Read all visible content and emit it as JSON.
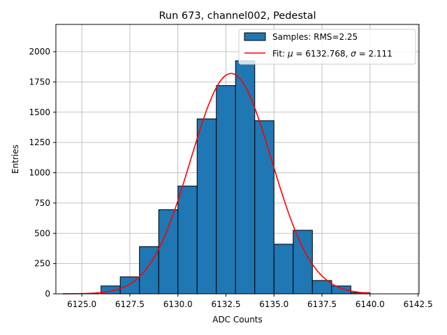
{
  "chart_data": {
    "type": "bar",
    "title": "Run 673, channel002, Pedestal",
    "xlabel": "ADC Counts",
    "ylabel": "Entries",
    "xlim": [
      6123.65,
      6142.55
    ],
    "ylim": [
      0,
      2225
    ],
    "grid": true,
    "legend_position": "top-right",
    "x_ticks": [
      6125.0,
      6127.5,
      6130.0,
      6132.5,
      6135.0,
      6137.5,
      6140.0,
      6142.5
    ],
    "x_tick_labels": [
      "6125.0",
      "6127.5",
      "6130.0",
      "6132.5",
      "6135.0",
      "6137.5",
      "6140.0",
      "6142.5"
    ],
    "y_ticks": [
      0,
      250,
      500,
      750,
      1000,
      1250,
      1500,
      1750,
      2000
    ],
    "y_tick_labels": [
      "0",
      "250",
      "500",
      "750",
      "1000",
      "1250",
      "1500",
      "1750",
      "2000"
    ],
    "histogram": {
      "name": "Samples: RMS=2.25",
      "color": "#1f77b4",
      "edge_color": "#000000",
      "bin_edges": [
        6126,
        6127,
        6128,
        6129,
        6130,
        6131,
        6132,
        6133,
        6134,
        6135,
        6136,
        6137,
        6138,
        6139,
        6140
      ],
      "counts": [
        65,
        140,
        390,
        695,
        890,
        1445,
        1720,
        1925,
        1430,
        410,
        525,
        110,
        65,
        10
      ]
    },
    "fit": {
      "name_prefix": "Fit: ",
      "mu_symbol": "μ",
      "mu_text": " = 6132.768, ",
      "sigma_symbol": "σ",
      "sigma_text": " = 2.111",
      "mu": 6132.768,
      "sigma": 2.111,
      "amplitude": 1820,
      "x_range": [
        6124,
        6140
      ],
      "color": "#ff0000"
    }
  }
}
